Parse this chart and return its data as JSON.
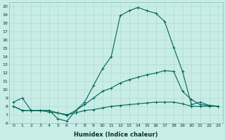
{
  "xlabel": "Humidex (Indice chaleur)",
  "ylabel": "",
  "xlim": [
    -0.5,
    23.5
  ],
  "ylim": [
    6,
    20.5
  ],
  "bg_color": "#c8ece6",
  "line_color": "#006655",
  "grid_color": "#a8d8d0",
  "series1": {
    "x": [
      0,
      1,
      2,
      3,
      4,
      5,
      6,
      7,
      8,
      9,
      10,
      11,
      12,
      13,
      14,
      15,
      16,
      17,
      18,
      19,
      20,
      21,
      22,
      23
    ],
    "y": [
      8.5,
      9.0,
      7.5,
      7.5,
      7.5,
      6.5,
      6.2,
      7.5,
      8.5,
      10.5,
      12.5,
      14.0,
      18.9,
      19.5,
      19.9,
      19.5,
      19.2,
      18.2,
      15.1,
      12.2,
      8.2,
      8.5,
      8.1,
      8.0
    ]
  },
  "series2": {
    "x": [
      0,
      1,
      2,
      3,
      4,
      5,
      6,
      7,
      8,
      9,
      10,
      11,
      12,
      13,
      14,
      15,
      16,
      17,
      18,
      19,
      20,
      21,
      22,
      23
    ],
    "y": [
      8.0,
      7.5,
      7.5,
      7.5,
      7.5,
      7.2,
      6.9,
      7.5,
      8.2,
      9.0,
      9.8,
      10.2,
      10.8,
      11.2,
      11.5,
      11.8,
      12.0,
      12.3,
      12.2,
      9.8,
      8.8,
      8.2,
      8.1,
      8.0
    ]
  },
  "series3": {
    "x": [
      0,
      1,
      2,
      3,
      4,
      5,
      6,
      7,
      8,
      9,
      10,
      11,
      12,
      13,
      14,
      15,
      16,
      17,
      18,
      19,
      20,
      21,
      22,
      23
    ],
    "y": [
      8.0,
      7.5,
      7.5,
      7.5,
      7.3,
      7.2,
      7.0,
      7.2,
      7.5,
      7.6,
      7.8,
      8.0,
      8.1,
      8.2,
      8.3,
      8.4,
      8.5,
      8.5,
      8.5,
      8.3,
      8.0,
      8.0,
      8.0,
      8.0
    ]
  },
  "yticks": [
    6,
    7,
    8,
    9,
    10,
    11,
    12,
    13,
    14,
    15,
    16,
    17,
    18,
    19,
    20
  ],
  "xticks": [
    0,
    1,
    2,
    3,
    4,
    5,
    6,
    7,
    8,
    9,
    10,
    11,
    12,
    13,
    14,
    15,
    16,
    17,
    18,
    19,
    20,
    21,
    22,
    23
  ]
}
